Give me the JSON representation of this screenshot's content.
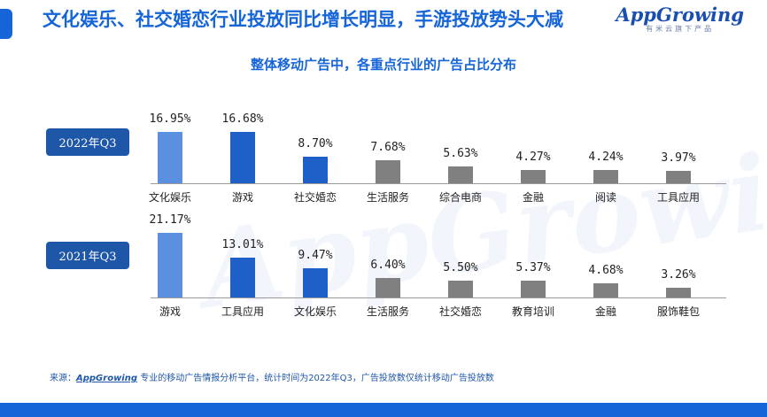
{
  "header": {
    "title": "文化娱乐、社交婚恋行业投放同比增长明显，手游投放势头大减",
    "logo_text": "AppGrowing",
    "logo_sub": "有米云旗下产品"
  },
  "colors": {
    "accent": "#1565d8",
    "badge": "#1f57a8",
    "bar_highlight": "#5b8fe0",
    "bar_blue": "#1e5fc8",
    "bar_gray": "#808080"
  },
  "watermark": "AppGrowing",
  "footer": {
    "prefix": "来源：",
    "brand": "AppGrowing",
    "text": " 专业的移动广告情报分析平台，统计时间为2022年Q3，广告投放数仅统计移动广告投放数"
  },
  "chart_data": {
    "type": "bar",
    "title": "整体移动广告中，各重点行业的广告占比分布",
    "panels": [
      {
        "name": "2022年Q3",
        "categories": [
          "文化娱乐",
          "游戏",
          "社交婚恋",
          "生活服务",
          "综合电商",
          "金融",
          "阅读",
          "工具应用"
        ],
        "values": [
          16.95,
          16.68,
          8.7,
          7.68,
          5.63,
          4.27,
          4.24,
          3.97
        ],
        "labels": [
          "16.95%",
          "16.68%",
          "8.70%",
          "7.68%",
          "5.63%",
          "4.27%",
          "4.24%",
          "3.97%"
        ],
        "colors": [
          "#5b8fe0",
          "#1e5fc8",
          "#1e5fc8",
          "#808080",
          "#808080",
          "#808080",
          "#808080",
          "#808080"
        ]
      },
      {
        "name": "2021年Q3",
        "categories": [
          "游戏",
          "工具应用",
          "文化娱乐",
          "生活服务",
          "社交婚恋",
          "教育培训",
          "金融",
          "服饰鞋包"
        ],
        "values": [
          21.17,
          13.01,
          9.47,
          6.4,
          5.5,
          5.37,
          4.68,
          3.26
        ],
        "labels": [
          "21.17%",
          "13.01%",
          "9.47%",
          "6.40%",
          "5.50%",
          "5.37%",
          "4.68%",
          "3.26%"
        ],
        "colors": [
          "#5b8fe0",
          "#1e5fc8",
          "#1e5fc8",
          "#808080",
          "#808080",
          "#808080",
          "#808080",
          "#808080"
        ]
      }
    ]
  }
}
